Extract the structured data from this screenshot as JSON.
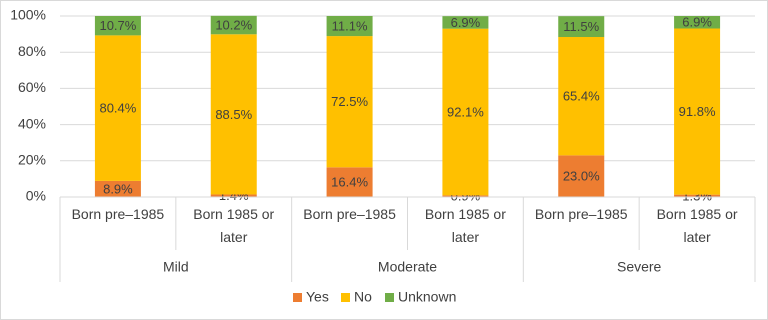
{
  "chart_data": {
    "type": "stacked-bar",
    "groups": [
      {
        "name": "Mild",
        "categories": [
          "Born pre–1985",
          "Born 1985 or later"
        ]
      },
      {
        "name": "Moderate",
        "categories": [
          "Born pre–1985",
          "Born 1985 or later"
        ]
      },
      {
        "name": "Severe",
        "categories": [
          "Born pre–1985",
          "Born 1985 or later"
        ]
      }
    ],
    "series": [
      {
        "name": "Yes",
        "color": "#ed7d31",
        "values": [
          8.9,
          1.4,
          16.4,
          0.9,
          23.0,
          1.3
        ],
        "value_labels": [
          "8.9%",
          "1.4%",
          "16.4%",
          "0.9%",
          "23.0%",
          "1.3%"
        ]
      },
      {
        "name": "No",
        "color": "#ffc000",
        "values": [
          80.4,
          88.5,
          72.5,
          92.1,
          65.4,
          91.8
        ],
        "value_labels": [
          "80.4%",
          "88.5%",
          "72.5%",
          "92.1%",
          "65.4%",
          "91.8%"
        ]
      },
      {
        "name": "Unknown",
        "color": "#70ad47",
        "values": [
          10.7,
          10.2,
          11.1,
          6.9,
          11.5,
          6.9
        ],
        "value_labels": [
          "10.7%",
          "10.2%",
          "11.1%",
          "6.9%",
          "11.5%",
          "6.9%"
        ]
      }
    ],
    "ylim": [
      0,
      100
    ],
    "yticks": [
      {
        "value": 0,
        "label": "0%"
      },
      {
        "value": 20,
        "label": "20%"
      },
      {
        "value": 40,
        "label": "40%"
      },
      {
        "value": 60,
        "label": "60%"
      },
      {
        "value": 80,
        "label": "80%"
      },
      {
        "value": 100,
        "label": "100%"
      }
    ],
    "grid": true,
    "legend": "bottom"
  }
}
